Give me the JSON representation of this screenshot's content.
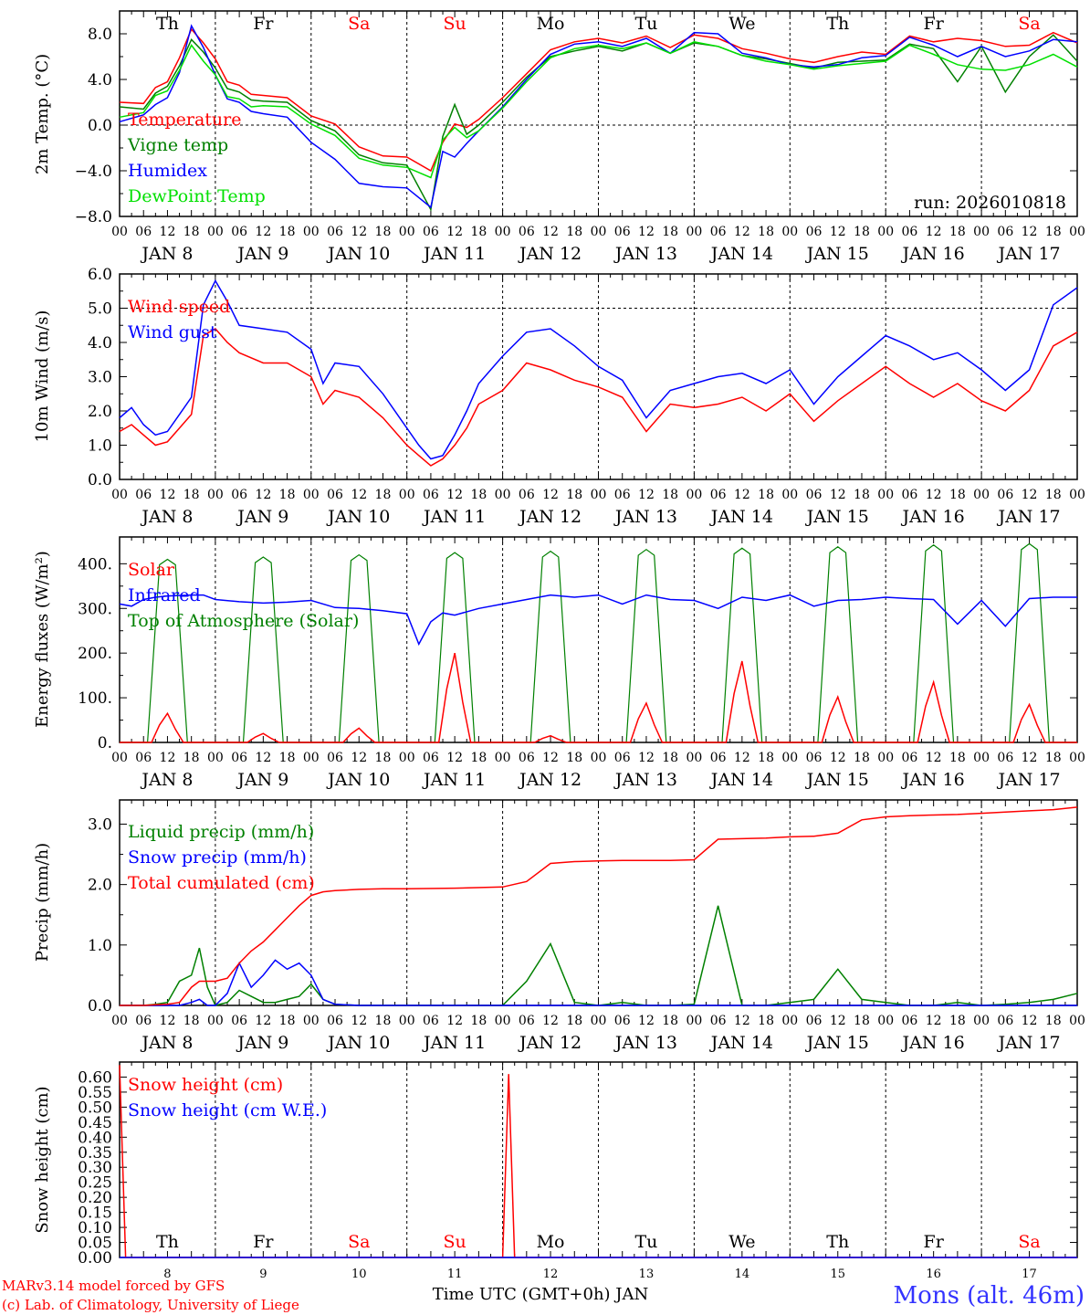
{
  "chart_data": [
    {
      "type": "line",
      "title": "2m Temp.",
      "ylabel": "2m Temp. (°C)",
      "ylim": [
        -8,
        10
      ],
      "yticks": [
        -8,
        -4,
        0,
        4,
        8
      ],
      "ytick_labels": [
        "−8.0",
        "−4.0",
        "0.0",
        "4.0",
        "8.0"
      ],
      "zero_line": 0,
      "run_label": "run: 2026010818",
      "legend": [
        "Temperature",
        "Vigne temp",
        "Humidex",
        "DewPoint Temp"
      ],
      "x_hours": [
        0,
        6,
        9,
        12,
        15,
        18,
        21,
        24,
        27,
        30,
        33,
        36,
        42,
        48,
        54,
        60,
        66,
        72,
        78,
        81,
        84,
        87,
        90,
        96,
        102,
        108,
        114,
        120,
        126,
        132,
        138,
        144,
        150,
        156,
        162,
        168,
        174,
        180,
        186,
        192,
        198,
        204,
        210,
        216,
        222,
        228,
        234,
        240
      ],
      "series": [
        {
          "name": "Temperature",
          "color": "#ff0000",
          "values": [
            2.0,
            1.9,
            3.3,
            3.8,
            5.9,
            8.4,
            7.2,
            5.8,
            3.8,
            3.5,
            2.7,
            2.6,
            2.4,
            0.8,
            0.1,
            -1.9,
            -2.7,
            -2.8,
            -4.0,
            -1.5,
            0.1,
            -0.2,
            0.5,
            2.4,
            4.5,
            6.6,
            7.3,
            7.6,
            7.2,
            7.8,
            6.8,
            7.9,
            7.6,
            6.7,
            6.3,
            5.8,
            5.5,
            6.0,
            6.4,
            6.2,
            7.8,
            7.3,
            7.6,
            7.4,
            6.9,
            7.0,
            8.1,
            7.2
          ]
        },
        {
          "name": "Vigne temp",
          "color": "#008000",
          "values": [
            1.6,
            1.4,
            2.8,
            3.4,
            5.2,
            7.5,
            6.4,
            5.0,
            3.2,
            2.9,
            2.2,
            2.1,
            2.0,
            0.4,
            -0.5,
            -2.6,
            -3.3,
            -3.5,
            -7.4,
            -1.0,
            1.8,
            -0.8,
            0.0,
            2.0,
            4.2,
            6.0,
            6.5,
            6.9,
            6.5,
            7.2,
            6.3,
            7.2,
            6.9,
            6.1,
            5.8,
            5.4,
            5.0,
            5.5,
            5.6,
            5.7,
            7.1,
            6.7,
            3.8,
            6.9,
            2.9,
            6.0,
            7.9,
            5.6
          ]
        },
        {
          "name": "Humidex",
          "color": "#0000ff",
          "values": [
            0.3,
            0.9,
            1.8,
            2.4,
            4.6,
            8.7,
            6.8,
            4.4,
            2.3,
            2.0,
            1.2,
            1.0,
            0.7,
            -1.5,
            -3.0,
            -5.1,
            -5.4,
            -5.5,
            -7.2,
            -2.3,
            -2.8,
            -1.6,
            -0.5,
            1.6,
            4.0,
            6.2,
            7.1,
            7.3,
            6.9,
            7.6,
            6.3,
            8.1,
            8.0,
            6.3,
            5.9,
            5.3,
            5.1,
            5.3,
            5.9,
            6.1,
            7.7,
            7.0,
            6.0,
            6.9,
            6.0,
            6.5,
            7.5,
            7.3
          ]
        },
        {
          "name": "DewPoint Temp",
          "color": "#00e000",
          "values": [
            0.7,
            1.1,
            2.6,
            3.0,
            4.8,
            7.0,
            5.6,
            4.4,
            2.5,
            2.3,
            1.6,
            1.7,
            1.6,
            0.1,
            -0.9,
            -2.9,
            -3.5,
            -3.7,
            -4.6,
            -1.3,
            -0.2,
            -1.1,
            -0.5,
            1.5,
            3.8,
            5.9,
            6.7,
            7.0,
            6.7,
            7.2,
            6.3,
            7.3,
            6.9,
            6.1,
            5.6,
            5.3,
            4.9,
            5.2,
            5.4,
            5.6,
            7.0,
            6.2,
            5.3,
            4.9,
            4.8,
            5.3,
            6.2,
            5.1
          ]
        }
      ]
    },
    {
      "type": "line",
      "title": "10m Wind",
      "ylabel": "10m Wind (m/s)",
      "ylim": [
        0,
        6
      ],
      "yticks": [
        0,
        1,
        2,
        3,
        4,
        5,
        6
      ],
      "ytick_labels": [
        "0.0",
        "1.0",
        "2.0",
        "3.0",
        "4.0",
        "5.0",
        "6.0"
      ],
      "ref_line": 5,
      "legend": [
        "Wind speed",
        "Wind gust"
      ],
      "x_hours": [
        0,
        3,
        6,
        9,
        12,
        15,
        18,
        21,
        24,
        27,
        30,
        36,
        42,
        48,
        51,
        54,
        60,
        66,
        72,
        75,
        78,
        81,
        84,
        87,
        90,
        96,
        102,
        108,
        114,
        120,
        126,
        132,
        138,
        144,
        150,
        156,
        162,
        168,
        174,
        180,
        186,
        192,
        198,
        204,
        210,
        216,
        222,
        228,
        234,
        240
      ],
      "series": [
        {
          "name": "Wind speed",
          "color": "#ff0000",
          "values": [
            1.4,
            1.6,
            1.3,
            1.0,
            1.1,
            1.5,
            1.9,
            4.2,
            4.4,
            4.0,
            3.7,
            3.4,
            3.4,
            3.0,
            2.2,
            2.6,
            2.4,
            1.8,
            1.0,
            0.7,
            0.4,
            0.6,
            1.0,
            1.5,
            2.2,
            2.6,
            3.4,
            3.2,
            2.9,
            2.7,
            2.4,
            1.4,
            2.2,
            2.1,
            2.2,
            2.4,
            2.0,
            2.5,
            1.7,
            2.3,
            2.8,
            3.3,
            2.8,
            2.4,
            2.8,
            2.3,
            2.0,
            2.6,
            3.9,
            4.3
          ]
        },
        {
          "name": "Wind gust",
          "color": "#0000ff",
          "values": [
            1.8,
            2.1,
            1.6,
            1.3,
            1.4,
            1.9,
            2.4,
            5.1,
            5.8,
            5.2,
            4.5,
            4.4,
            4.3,
            3.8,
            2.8,
            3.4,
            3.3,
            2.5,
            1.5,
            1.0,
            0.6,
            0.7,
            1.3,
            2.0,
            2.8,
            3.6,
            4.3,
            4.4,
            3.9,
            3.3,
            2.9,
            1.8,
            2.6,
            2.8,
            3.0,
            3.1,
            2.8,
            3.2,
            2.2,
            3.0,
            3.6,
            4.2,
            3.9,
            3.5,
            3.7,
            3.2,
            2.6,
            3.2,
            5.1,
            5.6
          ]
        }
      ]
    },
    {
      "type": "line",
      "title": "Energy fluxes",
      "ylabel": "Energy fluxes (W/m²)",
      "ylim": [
        0,
        460
      ],
      "yticks": [
        0,
        100,
        200,
        300,
        400
      ],
      "ytick_labels": [
        "0.",
        "100.",
        "200.",
        "300.",
        "400."
      ],
      "legend": [
        "Solar",
        "Infrared",
        "Top of Atmosphere (Solar)"
      ],
      "days": [
        0,
        1,
        2,
        3,
        4,
        5,
        6,
        7,
        8,
        9
      ],
      "toa_peaks": [
        410,
        415,
        420,
        425,
        428,
        432,
        435,
        438,
        442,
        445
      ],
      "solar_peaks": [
        65,
        20,
        32,
        200,
        15,
        88,
        182,
        102,
        135,
        85
      ],
      "infrared": {
        "x_hours": [
          0,
          3,
          6,
          9,
          12,
          18,
          21,
          24,
          30,
          36,
          42,
          48,
          54,
          60,
          66,
          72,
          75,
          78,
          81,
          84,
          90,
          96,
          102,
          108,
          114,
          120,
          126,
          132,
          138,
          144,
          150,
          156,
          162,
          168,
          174,
          180,
          186,
          192,
          198,
          204,
          210,
          216,
          222,
          228,
          234,
          240
        ],
        "values": [
          310,
          305,
          320,
          325,
          328,
          330,
          330,
          320,
          315,
          312,
          314,
          318,
          302,
          300,
          295,
          288,
          220,
          270,
          290,
          285,
          300,
          310,
          320,
          330,
          325,
          330,
          310,
          330,
          320,
          318,
          300,
          325,
          318,
          330,
          305,
          318,
          320,
          325,
          322,
          320,
          265,
          318,
          260,
          322,
          325,
          325
        ]
      }
    },
    {
      "type": "line",
      "title": "Precip",
      "ylabel": "Precip (mm/h)",
      "ylim": [
        0,
        3.4
      ],
      "yticks": [
        0,
        1,
        2,
        3
      ],
      "ytick_labels": [
        "0.0",
        "1.0",
        "2.0",
        "3.0"
      ],
      "legend": [
        "Liquid precip (mm/h)",
        "Snow precip (mm/h)",
        "Total cumulated (cm)"
      ],
      "x_hours": [
        0,
        6,
        9,
        12,
        15,
        18,
        20,
        22,
        24,
        27,
        30,
        33,
        36,
        39,
        42,
        45,
        48,
        51,
        54,
        60,
        66,
        72,
        84,
        96,
        102,
        108,
        114,
        120,
        126,
        132,
        138,
        144,
        150,
        156,
        162,
        168,
        174,
        180,
        186,
        192,
        198,
        204,
        210,
        216,
        222,
        228,
        234,
        240
      ],
      "series": [
        {
          "name": "Liquid precip (mm/h)",
          "color": "#008000",
          "values": [
            0,
            0,
            0.02,
            0.05,
            0.4,
            0.5,
            0.95,
            0.3,
            0,
            0.05,
            0.25,
            0.15,
            0.05,
            0.05,
            0.1,
            0.15,
            0.35,
            0.1,
            0.02,
            0,
            0,
            0,
            0,
            0,
            0.4,
            1.02,
            0.05,
            0,
            0.05,
            0,
            0,
            0.02,
            1.65,
            0,
            0,
            0.05,
            0.1,
            0.6,
            0.1,
            0.05,
            0,
            0,
            0.05,
            0,
            0.02,
            0.05,
            0.1,
            0.2
          ]
        },
        {
          "name": "Snow precip (mm/h)",
          "color": "#0000ff",
          "values": [
            0,
            0,
            0,
            0,
            0,
            0.05,
            0.1,
            0,
            0,
            0.2,
            0.7,
            0.3,
            0.5,
            0.75,
            0.6,
            0.7,
            0.5,
            0.1,
            0.02,
            0,
            0,
            0,
            0,
            0,
            0,
            0,
            0,
            0,
            0,
            0,
            0,
            0,
            0,
            0,
            0,
            0,
            0,
            0,
            0,
            0,
            0,
            0,
            0,
            0,
            0,
            0,
            0,
            0
          ]
        },
        {
          "name": "Total cumulated (cm)",
          "color": "#ff0000",
          "values": [
            0,
            0,
            0.01,
            0.02,
            0.05,
            0.3,
            0.4,
            0.4,
            0.4,
            0.45,
            0.7,
            0.9,
            1.05,
            1.25,
            1.45,
            1.65,
            1.82,
            1.88,
            1.9,
            1.92,
            1.93,
            1.93,
            1.94,
            1.96,
            2.05,
            2.35,
            2.38,
            2.39,
            2.4,
            2.4,
            2.4,
            2.41,
            2.75,
            2.76,
            2.77,
            2.79,
            2.8,
            2.85,
            3.07,
            3.12,
            3.14,
            3.15,
            3.16,
            3.18,
            3.2,
            3.22,
            3.24,
            3.28
          ]
        }
      ]
    },
    {
      "type": "line",
      "title": "Snow height",
      "ylabel": "Snow height (cm)",
      "ylim": [
        0,
        0.65
      ],
      "yticks": [
        0,
        0.05,
        0.1,
        0.15,
        0.2,
        0.25,
        0.3,
        0.35,
        0.4,
        0.45,
        0.5,
        0.55,
        0.6
      ],
      "ytick_labels": [
        "0.00",
        "0.05",
        "0.10",
        "0.15",
        "0.20",
        "0.25",
        "0.30",
        "0.35",
        "0.40",
        "0.45",
        "0.50",
        "0.55",
        "0.60"
      ],
      "legend": [
        "Snow height (cm)",
        "Snow height (cm W.E.)"
      ],
      "x_hours": [
        0,
        1.5,
        3,
        96,
        97.5,
        99,
        240
      ],
      "series": [
        {
          "name": "Snow height (cm)",
          "color": "#ff0000",
          "values": [
            0.64,
            0,
            0,
            0,
            0.61,
            0,
            0
          ]
        },
        {
          "name": "Snow height (cm W.E.)",
          "color": "#0000ff",
          "values": [
            0,
            0,
            0,
            0,
            0,
            0,
            0
          ]
        }
      ]
    }
  ],
  "axis": {
    "start_hour": 0,
    "end_hour": 240,
    "hour_labels": [
      "00",
      "06",
      "12",
      "18"
    ],
    "end_label": "00",
    "date_labels": [
      "JAN   8",
      "JAN   9",
      "JAN 10",
      "JAN 11",
      "JAN 12",
      "JAN 13",
      "JAN 14",
      "JAN 15",
      "JAN 16",
      "JAN 17"
    ],
    "weekdays": [
      "Th",
      "Fr",
      "Sa",
      "Su",
      "Mo",
      "Tu",
      "We",
      "Th",
      "Fr",
      "Sa"
    ],
    "weekend_flags": [
      false,
      false,
      true,
      true,
      false,
      false,
      false,
      false,
      false,
      true
    ],
    "day_numbers": [
      "8",
      "9",
      "10",
      "11",
      "12",
      "13",
      "14",
      "15",
      "16",
      "17"
    ],
    "xlabel": "Time UTC (GMT+0h) JAN"
  },
  "colors": {
    "weekday": "#000000",
    "weekend": "#ff0000",
    "credit": "#ff0000",
    "station": "#3333ff"
  },
  "footer": {
    "credit_line1": "MARv3.14 model forced by GFS",
    "credit_line2": "(c) Lab. of Climatology, University of Liege",
    "station": "Mons (alt. 46m)"
  }
}
